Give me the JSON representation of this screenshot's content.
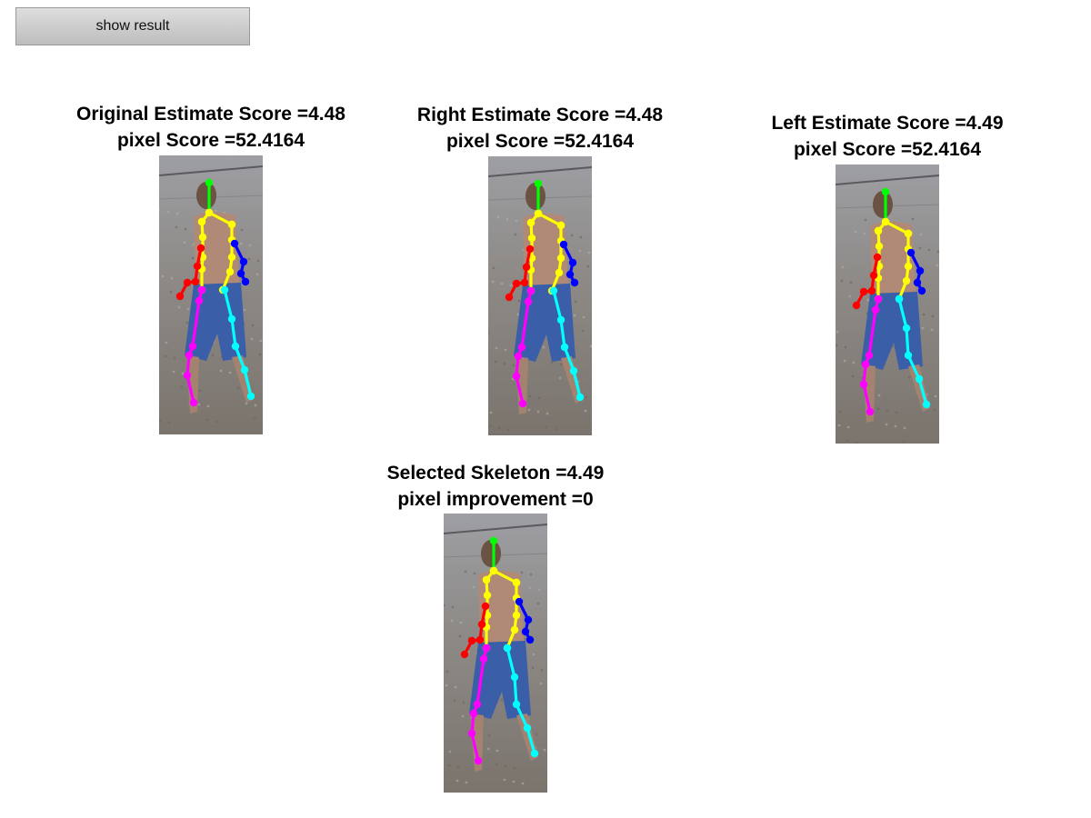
{
  "toolbar": {
    "show_result_label": "show result"
  },
  "panels": [
    {
      "line1": "Original Estimate Score =4.48",
      "line2": "pixel Score =52.4164"
    },
    {
      "line1": "Right Estimate Score =4.48",
      "line2": "pixel Score =52.4164"
    },
    {
      "line1": "Left Estimate Score =4.49",
      "line2": "pixel Score =52.4164"
    },
    {
      "line1": "Selected Skeleton =4.49",
      "line2": "pixel improvement =0"
    }
  ],
  "limb_colors": {
    "head": "#00ff00",
    "torso": "#ffff00",
    "right_arm": "#ff0000",
    "left_arm": "#0000ff",
    "right_leg": "#ff00ff",
    "left_leg": "#00ffff"
  }
}
